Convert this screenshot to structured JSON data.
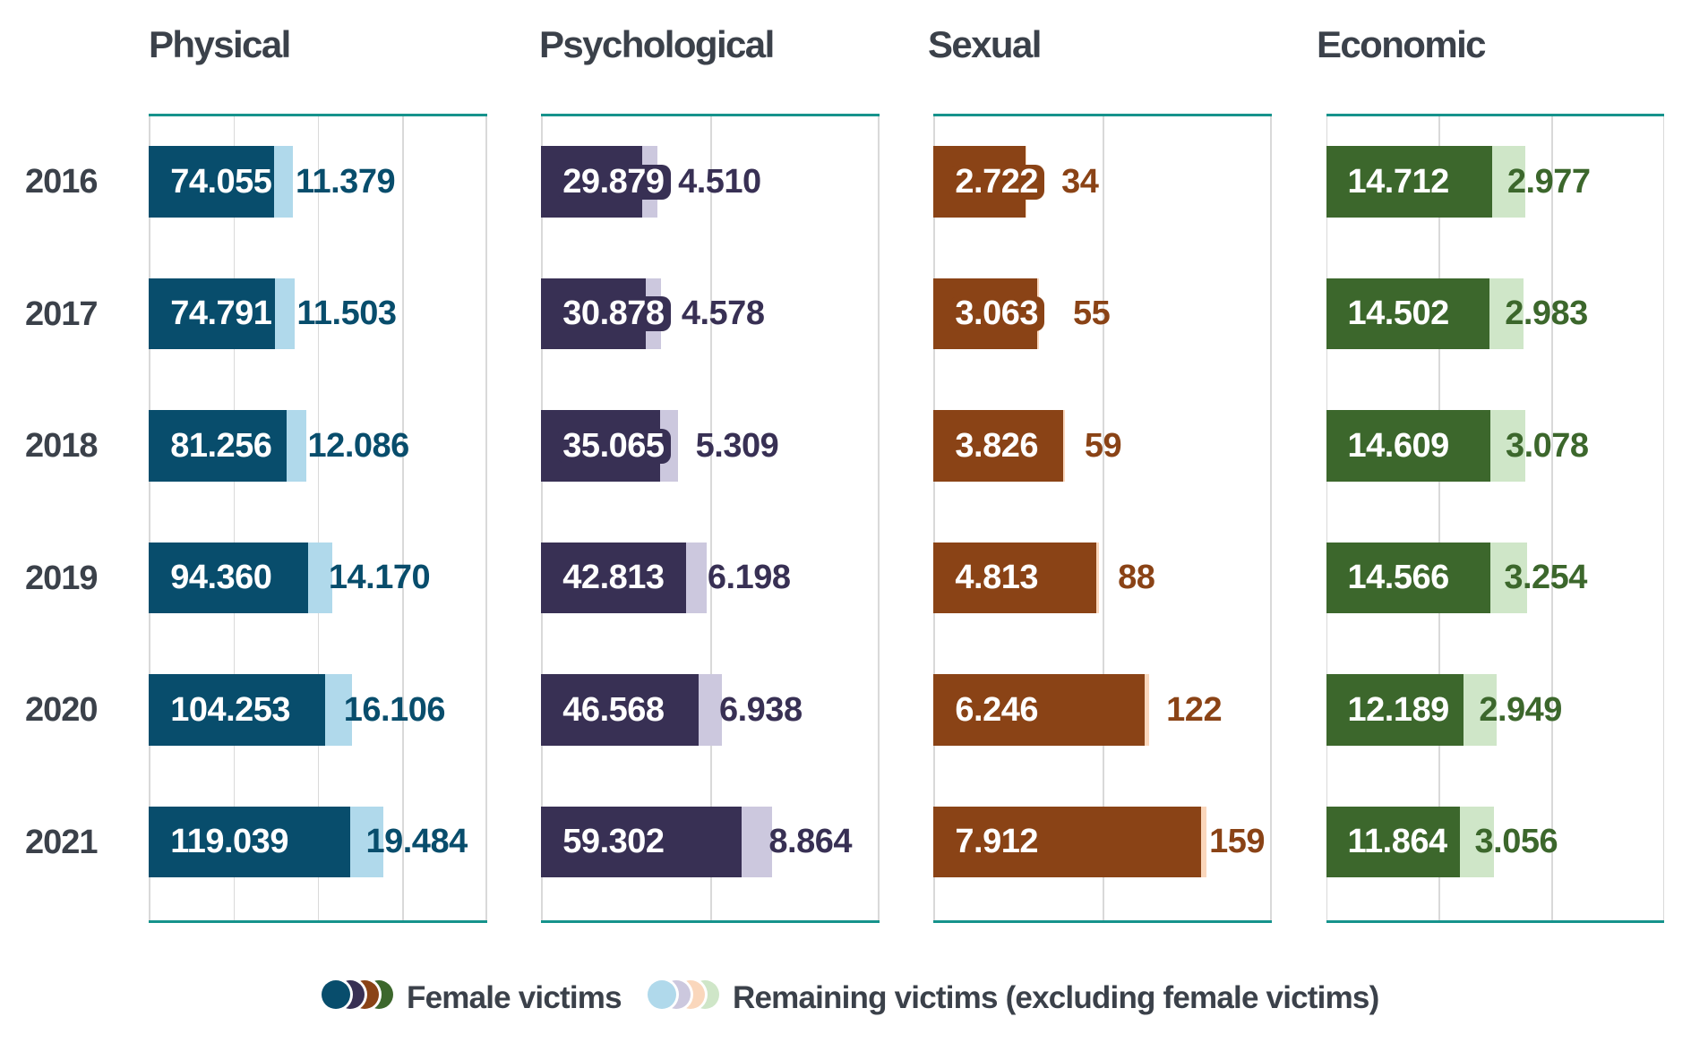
{
  "chart_data": {
    "type": "bar",
    "orientation": "horizontal",
    "grid": "vertical-gridlines",
    "categories": [
      "2016",
      "2017",
      "2018",
      "2019",
      "2020",
      "2021"
    ],
    "panels": [
      {
        "title": "Physical",
        "xlim": [
          0,
          200000
        ],
        "grid_step": 50000,
        "series": {
          "female_victims": [
            74055,
            74791,
            81256,
            94360,
            104253,
            119039
          ],
          "remaining_victims": [
            11379,
            11503,
            12086,
            14170,
            16106,
            19484
          ]
        },
        "female_labels": [
          "74.055",
          "74.791",
          "81.256",
          "94.360",
          "104.253",
          "119.039"
        ],
        "remaining_labels": [
          "11.379",
          "11.503",
          "12.086",
          "14.170",
          "16.106",
          "19.484"
        ],
        "color_female": "#084d6c",
        "color_remaining": "#b0d9eb"
      },
      {
        "title": "Psychological",
        "xlim": [
          0,
          100000
        ],
        "grid_step": 50000,
        "series": {
          "female_victims": [
            29879,
            30878,
            35065,
            42813,
            46568,
            59302
          ],
          "remaining_victims": [
            4510,
            4578,
            5309,
            6198,
            6938,
            8864
          ]
        },
        "female_labels": [
          "29.879",
          "30.878",
          "35.065",
          "42.813",
          "46.568",
          "59.302"
        ],
        "remaining_labels": [
          "4.510",
          "4.578",
          "5.309",
          "6.198",
          "6.938",
          "8.864"
        ],
        "color_female": "#383054",
        "color_remaining": "#ccc8de"
      },
      {
        "title": "Sexual",
        "xlim": [
          0,
          10000
        ],
        "grid_step": 5000,
        "series": {
          "female_victims": [
            2722,
            3063,
            3826,
            4813,
            6246,
            7912
          ],
          "remaining_victims": [
            34,
            55,
            59,
            88,
            122,
            159
          ]
        },
        "female_labels": [
          "2.722",
          "3.063",
          "3.826",
          "4.813",
          "6.246",
          "7.912"
        ],
        "remaining_labels": [
          "34",
          "55",
          "59",
          "88",
          "122",
          "159"
        ],
        "color_female": "#8a4316",
        "color_remaining": "#fad7bc"
      },
      {
        "title": "Economic",
        "xlim": [
          0,
          30000
        ],
        "grid_step": 10000,
        "series": {
          "female_victims": [
            14712,
            14502,
            14609,
            14566,
            12189,
            11864
          ],
          "remaining_victims": [
            2977,
            2983,
            3078,
            3254,
            2949,
            3056
          ]
        },
        "female_labels": [
          "14.712",
          "14.502",
          "14.609",
          "14.566",
          "12.189",
          "11.864"
        ],
        "remaining_labels": [
          "2.977",
          "2.983",
          "3.078",
          "3.254",
          "2.949",
          "3.056"
        ],
        "color_female": "#3c672c",
        "color_remaining": "#cfe6c8"
      }
    ],
    "legend": [
      {
        "label": "Female victims",
        "swatches": [
          "#084d6c",
          "#383054",
          "#8a4316",
          "#3c672c"
        ]
      },
      {
        "label": "Remaining victims (excluding female victims)",
        "swatches": [
          "#b0d9eb",
          "#ccc8de",
          "#fad7bc",
          "#cfe6c8"
        ]
      }
    ],
    "styles": {
      "axis_line_color": "#16938c",
      "gridline_color": "#d9d9d9",
      "text_color": "#3b414a",
      "background": "#ffffff"
    }
  }
}
